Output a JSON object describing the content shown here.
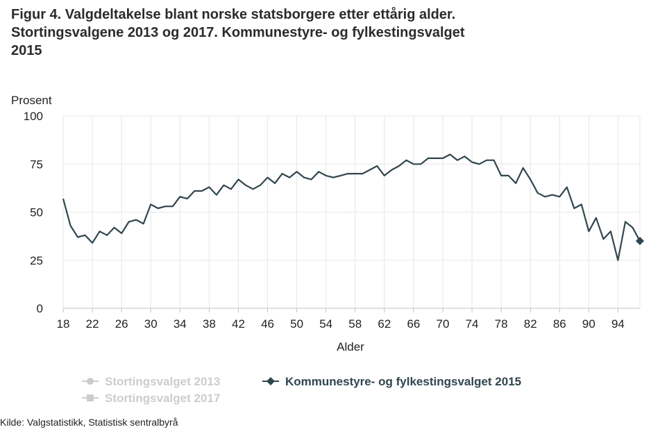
{
  "title_lines": [
    "Figur 4. Valgdeltakelse blant norske statsborgere etter ettårig alder.",
    "Stortingsvalgene 2013 og 2017. Kommunestyre- og fylkestingsvalget",
    "2015"
  ],
  "source": "Kilde: Valgstatistikk, Statistisk sentralbyrå",
  "colors": {
    "active": "#2d4650",
    "inactive": "#cccccc",
    "grid": "#e6e6e6",
    "axis": "#c0d0e0"
  },
  "chart_data": {
    "type": "line",
    "xlabel": "Alder",
    "ylabel": "Prosent",
    "xlim": [
      18,
      97
    ],
    "ylim": [
      0,
      100
    ],
    "yticks": [
      0,
      25,
      50,
      75,
      100
    ],
    "xticks": [
      18,
      22,
      26,
      30,
      34,
      38,
      42,
      46,
      50,
      54,
      58,
      62,
      66,
      70,
      74,
      78,
      82,
      86,
      90,
      94
    ],
    "legend": [
      {
        "name": "Stortingsvalget 2013",
        "visible": false,
        "marker": "circle"
      },
      {
        "name": "Stortingsvalget 2017",
        "visible": false,
        "marker": "square"
      },
      {
        "name": "Kommunestyre- og fylkestingsvalget 2015",
        "visible": true,
        "marker": "diamond"
      }
    ],
    "series": [
      {
        "name": "Kommunestyre- og fylkestingsvalget 2015",
        "x": [
          18,
          19,
          20,
          21,
          22,
          23,
          24,
          25,
          26,
          27,
          28,
          29,
          30,
          31,
          32,
          33,
          34,
          35,
          36,
          37,
          38,
          39,
          40,
          41,
          42,
          43,
          44,
          45,
          46,
          47,
          48,
          49,
          50,
          51,
          52,
          53,
          54,
          55,
          56,
          57,
          58,
          59,
          60,
          61,
          62,
          63,
          64,
          65,
          66,
          67,
          68,
          69,
          70,
          71,
          72,
          73,
          74,
          75,
          76,
          77,
          78,
          79,
          80,
          81,
          82,
          83,
          84,
          85,
          86,
          87,
          88,
          89,
          90,
          91,
          92,
          93,
          94,
          95,
          96,
          97
        ],
        "values": [
          57,
          43,
          37,
          38,
          34,
          40,
          38,
          42,
          39,
          45,
          46,
          44,
          54,
          52,
          53,
          53,
          58,
          57,
          61,
          61,
          63,
          59,
          64,
          62,
          67,
          64,
          62,
          64,
          68,
          65,
          70,
          68,
          71,
          68,
          67,
          71,
          69,
          68,
          69,
          70,
          70,
          70,
          72,
          74,
          69,
          72,
          74,
          77,
          75,
          75,
          78,
          78,
          78,
          80,
          77,
          79,
          76,
          75,
          77,
          77,
          69,
          69,
          65,
          73,
          67,
          60,
          58,
          59,
          58,
          63,
          52,
          54,
          40,
          47,
          36,
          40,
          25,
          45,
          42,
          35
        ]
      }
    ]
  }
}
